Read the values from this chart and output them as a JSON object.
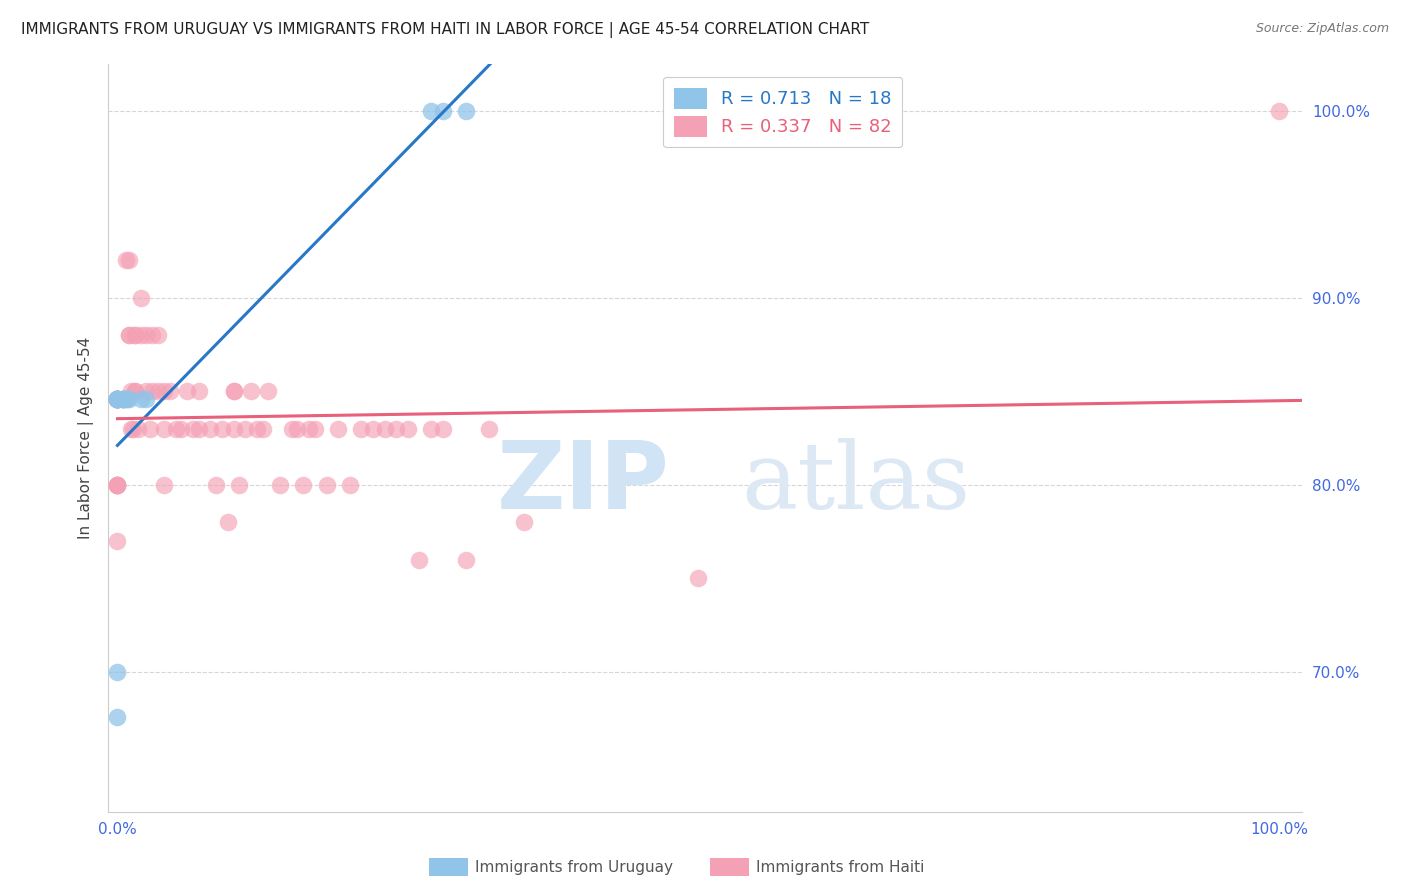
{
  "title": "IMMIGRANTS FROM URUGUAY VS IMMIGRANTS FROM HAITI IN LABOR FORCE | AGE 45-54 CORRELATION CHART",
  "source": "Source: ZipAtlas.com",
  "ylabel": "In Labor Force | Age 45-54",
  "y_min": 0.625,
  "y_max": 1.025,
  "x_min": -0.008,
  "x_max": 1.02,
  "legend_R_uruguay": "0.713",
  "legend_N_uruguay": "18",
  "legend_R_haiti": "0.337",
  "legend_N_haiti": "82",
  "color_uruguay": "#90c4e8",
  "color_haiti": "#f4a0b5",
  "line_color_uruguay": "#2878c8",
  "line_color_haiti": "#e8607a",
  "watermark_zip": "ZIP",
  "watermark_atlas": "atlas",
  "watermark_color": "#d0e4f5",
  "axis_label_color": "#4169E1",
  "grid_color": "#cccccc",
  "yticks": [
    0.7,
    0.8,
    0.9,
    1.0
  ],
  "ytick_labels": [
    "70.0%",
    "80.0%",
    "90.0%",
    "100.0%"
  ],
  "xticks": [
    0.0,
    1.0
  ],
  "xtick_labels": [
    "0.0%",
    "100.0%"
  ],
  "uruguay_x": [
    0.0,
    0.0,
    0.0,
    0.0,
    0.0,
    0.0,
    0.0,
    0.005,
    0.005,
    0.005,
    0.007,
    0.008,
    0.01,
    0.02,
    0.025,
    0.27,
    0.28,
    0.3
  ],
  "uruguay_y": [
    0.846,
    0.846,
    0.846,
    0.846,
    0.846,
    0.7,
    0.676,
    0.846,
    0.846,
    0.846,
    0.846,
    0.846,
    0.846,
    0.846,
    0.846,
    1.0,
    1.0,
    1.0
  ],
  "haiti_x": [
    0.0,
    0.0,
    0.0,
    0.0,
    0.0,
    0.0,
    0.0,
    0.0,
    0.0,
    0.0,
    0.0,
    0.0,
    0.0,
    0.0,
    0.005,
    0.005,
    0.007,
    0.01,
    0.01,
    0.01,
    0.012,
    0.012,
    0.013,
    0.015,
    0.015,
    0.015,
    0.015,
    0.018,
    0.02,
    0.02,
    0.025,
    0.025,
    0.028,
    0.03,
    0.03,
    0.035,
    0.035,
    0.04,
    0.04,
    0.04,
    0.045,
    0.05,
    0.055,
    0.06,
    0.065,
    0.07,
    0.07,
    0.08,
    0.085,
    0.09,
    0.095,
    0.1,
    0.1,
    0.1,
    0.105,
    0.11,
    0.115,
    0.12,
    0.125,
    0.13,
    0.14,
    0.15,
    0.155,
    0.16,
    0.165,
    0.17,
    0.18,
    0.19,
    0.2,
    0.21,
    0.22,
    0.23,
    0.24,
    0.25,
    0.26,
    0.27,
    0.28,
    0.3,
    0.32,
    0.35,
    0.5,
    1.0
  ],
  "haiti_y": [
    0.846,
    0.846,
    0.846,
    0.846,
    0.846,
    0.846,
    0.846,
    0.8,
    0.8,
    0.8,
    0.8,
    0.8,
    0.846,
    0.77,
    0.846,
    0.846,
    0.92,
    0.92,
    0.88,
    0.88,
    0.85,
    0.83,
    0.83,
    0.88,
    0.88,
    0.85,
    0.85,
    0.83,
    0.9,
    0.88,
    0.88,
    0.85,
    0.83,
    0.88,
    0.85,
    0.88,
    0.85,
    0.85,
    0.83,
    0.8,
    0.85,
    0.83,
    0.83,
    0.85,
    0.83,
    0.85,
    0.83,
    0.83,
    0.8,
    0.83,
    0.78,
    0.85,
    0.85,
    0.83,
    0.8,
    0.83,
    0.85,
    0.83,
    0.83,
    0.85,
    0.8,
    0.83,
    0.83,
    0.8,
    0.83,
    0.83,
    0.8,
    0.83,
    0.8,
    0.83,
    0.83,
    0.83,
    0.83,
    0.83,
    0.76,
    0.83,
    0.83,
    0.76,
    0.83,
    0.78,
    0.75,
    1.0
  ]
}
